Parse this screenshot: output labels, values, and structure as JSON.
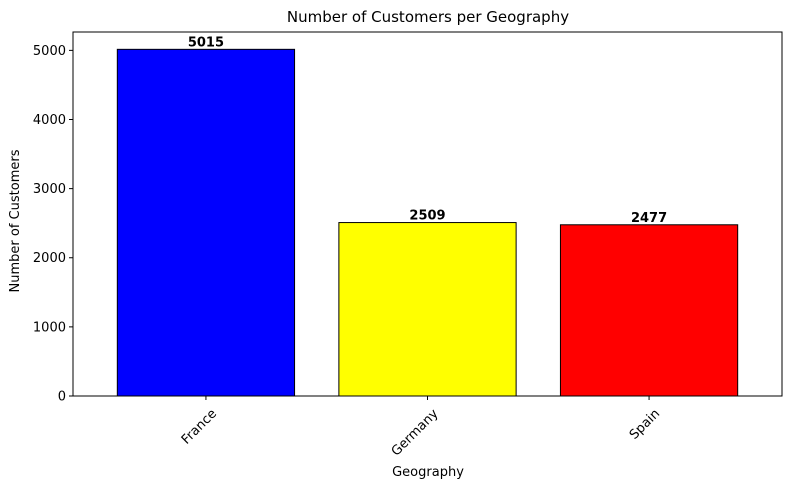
{
  "chart_data": {
    "type": "bar",
    "title": "Number of Customers per Geography",
    "xlabel": "Geography",
    "ylabel": "Number of Customers",
    "categories": [
      "France",
      "Germany",
      "Spain"
    ],
    "values": [
      5015,
      2509,
      2477
    ],
    "value_labels": [
      "5015",
      "2509",
      "2477"
    ],
    "colors": [
      "#0000ff",
      "#ffff00",
      "#ff0000"
    ],
    "bar_edge_color": "#000000",
    "ylim": [
      0,
      5265.75
    ],
    "yticks": [
      0,
      1000,
      2000,
      3000,
      4000,
      5000
    ],
    "ytick_labels": [
      "0",
      "1000",
      "2000",
      "3000",
      "4000",
      "5000"
    ],
    "xtick_rotation": 45,
    "grid": false,
    "legend": "none"
  }
}
